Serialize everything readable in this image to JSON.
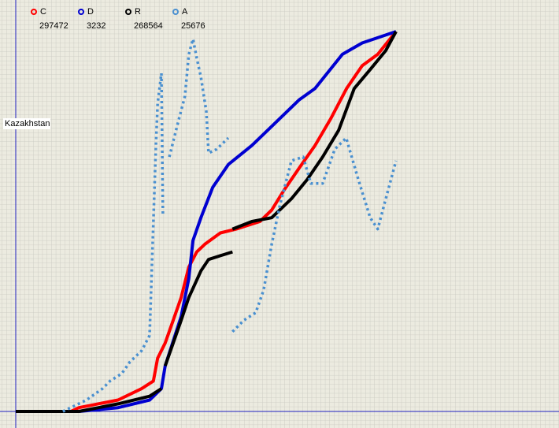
{
  "chart_data": {
    "type": "line",
    "annotation": "Kazakhstan",
    "xlim": [
      0,
      100
    ],
    "ylim": [
      0,
      100
    ],
    "grid": true,
    "series": [
      {
        "name": "C",
        "current": 297472,
        "color": "#ff0000",
        "style": "solid",
        "x": [
          0,
          14.5,
          16.6,
          26.9,
          33.1,
          36.2,
          37.3,
          39.3,
          41.4,
          43.5,
          45.5,
          47.6,
          49.7,
          53.8,
          58,
          64.2,
          67.3,
          70.4,
          74.5,
          78.7,
          82.8,
          87,
          91.1,
          95.2,
          100
        ],
        "values": [
          0,
          0,
          1,
          3,
          6,
          8,
          14,
          18,
          24,
          30,
          38,
          42,
          44,
          47,
          48,
          50,
          53,
          58,
          64,
          70,
          77,
          85,
          91,
          94,
          100
        ]
      },
      {
        "name": "D",
        "current": 3232,
        "color": "#0000d0",
        "style": "solid",
        "x": [
          0,
          16.6,
          26.9,
          35.2,
          38.3,
          39.3,
          43.5,
          45.5,
          46.6,
          48.7,
          51.8,
          55.9,
          62.1,
          68.3,
          74.5,
          78.7,
          85.9,
          91.1,
          100
        ],
        "values": [
          0,
          0,
          1,
          3,
          6,
          12,
          25,
          35,
          45,
          51,
          59,
          65,
          70,
          76,
          82,
          85,
          94,
          97,
          100
        ]
      },
      {
        "name": "R",
        "current": 268564,
        "color": "#000000",
        "style": "solid",
        "x": [
          0,
          16.6,
          26.9,
          35.2,
          38.3,
          null,
          39.3,
          41.4,
          43.5,
          45.5,
          48.7,
          50.7,
          53.8,
          57,
          null,
          57,
          62.1,
          67.3,
          72.5,
          76.6,
          80.7,
          84.9,
          89,
          93.2,
          97.3,
          100
        ],
        "values": [
          0,
          0,
          2,
          4,
          6,
          null,
          12,
          18,
          24,
          30,
          37,
          40,
          41,
          42,
          null,
          48,
          50,
          51,
          56,
          61,
          67,
          74,
          85,
          90,
          95,
          100
        ]
      },
      {
        "name": "A",
        "current": 25676,
        "color": "#4a90d0",
        "style": "dotted",
        "x": [
          12.4,
          18.6,
          22.8,
          24.8,
          27.9,
          30,
          33.1,
          35.2,
          36.9,
          37.3,
          38.3,
          38.7,
          null,
          40.4,
          42.4,
          44.5,
          45.5,
          46.6,
          47.6,
          48.7,
          50.1,
          50.7,
          52.8,
          55.9,
          null,
          57,
          60,
          63.1,
          65.2,
          67.3,
          69.4,
          72.5,
          75.6,
          77.6,
          80.7,
          83.9,
          86.9,
          90.1,
          93.2,
          95.2,
          97.3,
          100
        ],
        "values": [
          0,
          3,
          6,
          8,
          10,
          13,
          16,
          20,
          71,
          81,
          89,
          52,
          null,
          67,
          75,
          83,
          94,
          98,
          93,
          88,
          79,
          68,
          69,
          72,
          null,
          21,
          24,
          26,
          32,
          44,
          54,
          66,
          67,
          60,
          60,
          69,
          72,
          61,
          51,
          48,
          56,
          66
        ]
      }
    ]
  }
}
